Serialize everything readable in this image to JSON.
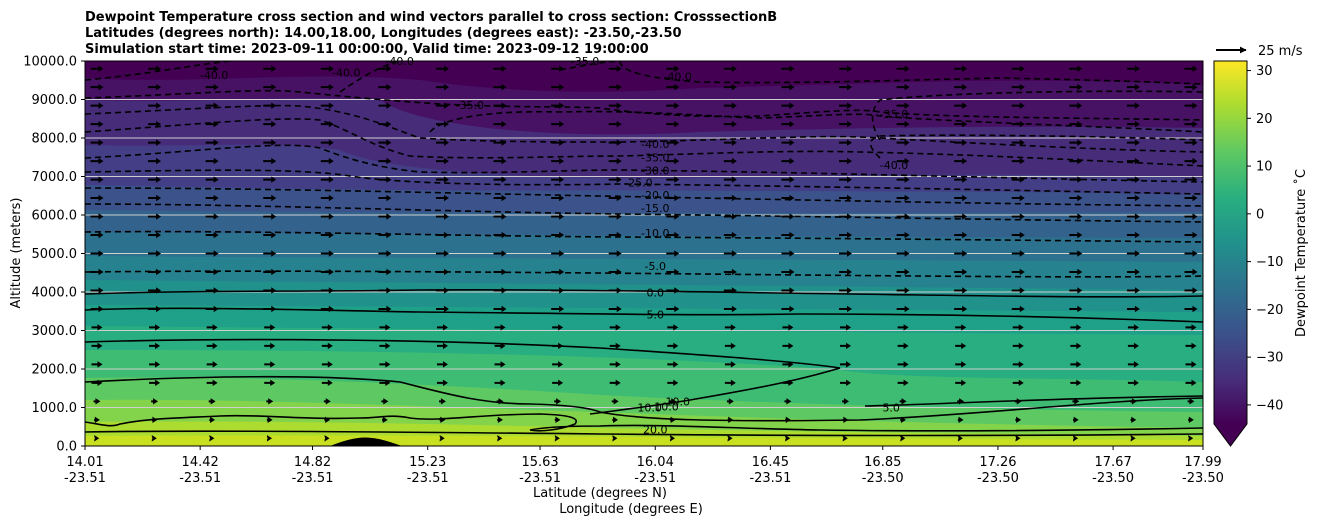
{
  "chart_data": {
    "type": "contour",
    "title_lines": [
      "Dewpoint Temperature cross section and wind vectors parallel to cross section: CrosssectionB",
      "Latitudes (degrees north): 14.00,18.00, Longitudes (degrees east): -23.50,-23.50",
      "Simulation start time: 2023-09-11 00:00:00, Valid time: 2023-09-12 19:00:00"
    ],
    "ylabel": "Altitude (meters)",
    "xlabel_lat": "Latitude (degrees N)",
    "xlabel_lon": "Longitude (degrees E)",
    "ylim": [
      0,
      10000
    ],
    "xlim": [
      14.01,
      17.99
    ],
    "y_ticks": [
      "0.0",
      "1000.0",
      "2000.0",
      "3000.0",
      "4000.0",
      "5000.0",
      "6000.0",
      "7000.0",
      "8000.0",
      "9000.0",
      "10000.0"
    ],
    "y_tick_values": [
      0,
      1000,
      2000,
      3000,
      4000,
      5000,
      6000,
      7000,
      8000,
      9000,
      10000
    ],
    "x_ticks": [
      {
        "lat": "14.01",
        "lon": "-23.51",
        "v": 14.01
      },
      {
        "lat": "14.42",
        "lon": "-23.51",
        "v": 14.42
      },
      {
        "lat": "14.82",
        "lon": "-23.51",
        "v": 14.82
      },
      {
        "lat": "15.23",
        "lon": "-23.51",
        "v": 15.23
      },
      {
        "lat": "15.63",
        "lon": "-23.51",
        "v": 15.63
      },
      {
        "lat": "16.04",
        "lon": "-23.51",
        "v": 16.04
      },
      {
        "lat": "16.45",
        "lon": "-23.51",
        "v": 16.45
      },
      {
        "lat": "16.85",
        "lon": "-23.50",
        "v": 16.85
      },
      {
        "lat": "17.26",
        "lon": "-23.50",
        "v": 17.26
      },
      {
        "lat": "17.67",
        "lon": "-23.50",
        "v": 17.67
      },
      {
        "lat": "17.99",
        "lon": "-23.50",
        "v": 17.99
      }
    ],
    "colorbar": {
      "label": "Dewpoint Temperature ˚C",
      "range": [
        -44,
        32
      ],
      "ticks": [
        "30",
        "20",
        "10",
        "0",
        "−10",
        "−20",
        "−30",
        "−40"
      ],
      "tick_values": [
        30,
        20,
        10,
        0,
        -10,
        -20,
        -30,
        -40
      ],
      "colormap": "viridis"
    },
    "quiver_key": {
      "label": "25 m/s",
      "speed": 25
    },
    "contour_levels": [
      {
        "label": "20.0",
        "value": 20,
        "at": [
          16.04,
          430
        ],
        "style": "solid"
      },
      {
        "label": "10.0",
        "value": 10,
        "at": [
          16.12,
          1150
        ],
        "style": "solid"
      },
      {
        "label": "10.0",
        "value": 10,
        "at": [
          16.02,
          1000
        ],
        "style": "solid"
      },
      {
        "label": "10.0",
        "value": 10,
        "at": [
          16.08,
          1020
        ],
        "style": "solid"
      },
      {
        "label": "5.0",
        "value": 5,
        "at": [
          16.04,
          3420
        ],
        "style": "solid"
      },
      {
        "label": "5.0",
        "value": 5,
        "at": [
          16.88,
          1000
        ],
        "style": "solid"
      },
      {
        "label": "0.0",
        "value": 0,
        "at": [
          16.04,
          3990
        ],
        "style": "solid"
      },
      {
        "label": "-5.0",
        "value": -5,
        "at": [
          16.04,
          4680
        ],
        "style": "dashed"
      },
      {
        "label": "-10.0",
        "value": -10,
        "at": [
          16.04,
          5530
        ],
        "style": "dashed"
      },
      {
        "label": "-15.0",
        "value": -15,
        "at": [
          16.04,
          6180
        ],
        "style": "dashed"
      },
      {
        "label": "-20.0",
        "value": -20,
        "at": [
          16.04,
          6520
        ],
        "style": "dashed"
      },
      {
        "label": "-25.0",
        "value": -25,
        "at": [
          15.98,
          6850
        ],
        "style": "dashed"
      },
      {
        "label": "-30.0",
        "value": -30,
        "at": [
          16.04,
          7160
        ],
        "style": "dashed"
      },
      {
        "label": "-35.0",
        "value": -35,
        "at": [
          16.04,
          7500
        ],
        "style": "dashed"
      },
      {
        "label": "-40.0",
        "value": -40,
        "at": [
          16.04,
          7850
        ],
        "style": "dashed"
      },
      {
        "label": "-35.0",
        "value": -35,
        "at": [
          15.38,
          8860
        ],
        "style": "dashed"
      },
      {
        "label": "-35.0",
        "value": -35,
        "at": [
          16.89,
          8620
        ],
        "style": "dashed"
      },
      {
        "label": "-40.0",
        "value": -40,
        "at": [
          16.89,
          7300
        ],
        "style": "dashed"
      },
      {
        "label": "-40.0",
        "value": -40,
        "at": [
          14.47,
          9640
        ],
        "style": "dashed"
      },
      {
        "label": "-40.0",
        "value": -40,
        "at": [
          14.94,
          9700
        ],
        "style": "dashed"
      },
      {
        "label": "-40.0",
        "value": -40,
        "at": [
          15.13,
          10000
        ],
        "style": "dashed"
      },
      {
        "label": "-35.0",
        "value": -35,
        "at": [
          15.79,
          10000
        ],
        "style": "dashed"
      },
      {
        "label": "-40.0",
        "value": -40,
        "at": [
          16.12,
          9600
        ],
        "style": "dashed"
      }
    ]
  }
}
